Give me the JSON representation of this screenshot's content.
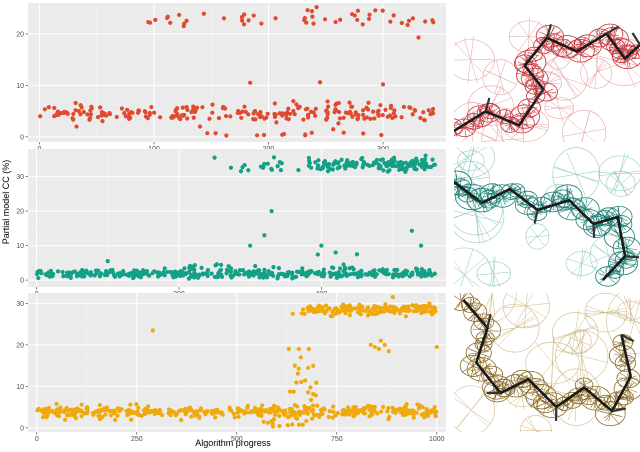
{
  "figure": {
    "xlabel": "Algorithm progress",
    "ylabel": "Partial model CC (%)"
  },
  "chart_data": [
    {
      "type": "scatter",
      "color": "#e04a2f",
      "xlim": [
        -10,
        355
      ],
      "ylim": [
        -1,
        26
      ],
      "xticks": [
        0,
        100,
        200,
        300
      ],
      "yticks": [
        0,
        10,
        20
      ],
      "clusters": [
        {
          "x_range": [
            0,
            345
          ],
          "y_center": 4.6,
          "y_spread": 1.3,
          "count": 230
        },
        {
          "x_range": [
            95,
            345
          ],
          "y_center": 23,
          "y_spread": 1.1,
          "count": 46
        },
        {
          "x_range": [
            140,
            300
          ],
          "y_center": 0.7,
          "y_spread": 0.5,
          "count": 12
        }
      ],
      "points": [
        {
          "x": 95,
          "y": 22.3
        },
        {
          "x": 126,
          "y": 21.5
        },
        {
          "x": 184,
          "y": 10.5
        },
        {
          "x": 245,
          "y": 10.6
        },
        {
          "x": 300,
          "y": 10.2
        },
        {
          "x": 242,
          "y": 25.2
        },
        {
          "x": 331,
          "y": 19.3
        },
        {
          "x": 190,
          "y": 0.3
        },
        {
          "x": 212,
          "y": 0.4
        }
      ]
    },
    {
      "type": "scatter",
      "color": "#13a087",
      "xlim": [
        -12,
        575
      ],
      "ylim": [
        -2,
        38
      ],
      "xticks": [
        0,
        200,
        400
      ],
      "yticks": [
        0,
        10,
        20,
        30
      ],
      "clusters": [
        {
          "x_range": [
            0,
            560
          ],
          "y_center": 1.8,
          "y_spread": 0.8,
          "count": 380
        },
        {
          "x_range": [
            380,
            560
          ],
          "y_center": 33.5,
          "y_spread": 1.3,
          "count": 150
        },
        {
          "x_range": [
            250,
            380
          ],
          "y_center": 33,
          "y_spread": 1.5,
          "count": 18
        },
        {
          "x_range": [
            200,
            560
          ],
          "y_center": 3.5,
          "y_spread": 1.0,
          "count": 35
        }
      ],
      "points": [
        {
          "x": 250,
          "y": 35.5
        },
        {
          "x": 300,
          "y": 10
        },
        {
          "x": 400,
          "y": 10
        },
        {
          "x": 420,
          "y": 8
        },
        {
          "x": 450,
          "y": 7.5
        },
        {
          "x": 320,
          "y": 13
        },
        {
          "x": 527,
          "y": 14.3
        },
        {
          "x": 540,
          "y": 10
        },
        {
          "x": 100,
          "y": 5.5
        },
        {
          "x": 395,
          "y": 7.4
        },
        {
          "x": 330,
          "y": 20
        }
      ]
    },
    {
      "type": "scatter",
      "color": "#f0a90c",
      "xlim": [
        -22,
        1023
      ],
      "ylim": [
        -1,
        32.5
      ],
      "xticks": [
        0,
        250,
        500,
        750,
        1000
      ],
      "yticks": [
        0,
        10,
        20,
        30
      ],
      "clusters": [
        {
          "x_range": [
            0,
            1000
          ],
          "y_center": 3.9,
          "y_spread": 1.0,
          "count": 420
        },
        {
          "x_range": [
            660,
            1000
          ],
          "y_center": 28.5,
          "y_spread": 0.9,
          "count": 170
        },
        {
          "x_range": [
            630,
            700
          ],
          "y_center": 9,
          "y_spread": 6,
          "count": 20
        },
        {
          "x_range": [
            560,
            700
          ],
          "y_center": 1.0,
          "y_spread": 0.7,
          "count": 12
        }
      ],
      "points": [
        {
          "x": 290,
          "y": 23.5
        },
        {
          "x": 630,
          "y": 19
        },
        {
          "x": 655,
          "y": 19
        },
        {
          "x": 680,
          "y": 19
        },
        {
          "x": 640,
          "y": 27.5
        },
        {
          "x": 660,
          "y": 17
        },
        {
          "x": 835,
          "y": 20
        },
        {
          "x": 845,
          "y": 19.5
        },
        {
          "x": 855,
          "y": 19
        },
        {
          "x": 860,
          "y": 21
        },
        {
          "x": 870,
          "y": 20
        },
        {
          "x": 880,
          "y": 18.5
        },
        {
          "x": 1000,
          "y": 19.5
        },
        {
          "x": 890,
          "y": 31.5
        },
        {
          "x": 645,
          "y": 15
        }
      ]
    }
  ],
  "images": [
    {
      "name": "density-map-red",
      "mesh_color": "#c7363c",
      "mesh_light": "#e5a0a2"
    },
    {
      "name": "density-map-teal",
      "mesh_color": "#1b7f73",
      "mesh_light": "#8cc6bd"
    },
    {
      "name": "density-map-gold",
      "mesh_color": "#8a6a25",
      "mesh_light": "#cdb783"
    }
  ]
}
